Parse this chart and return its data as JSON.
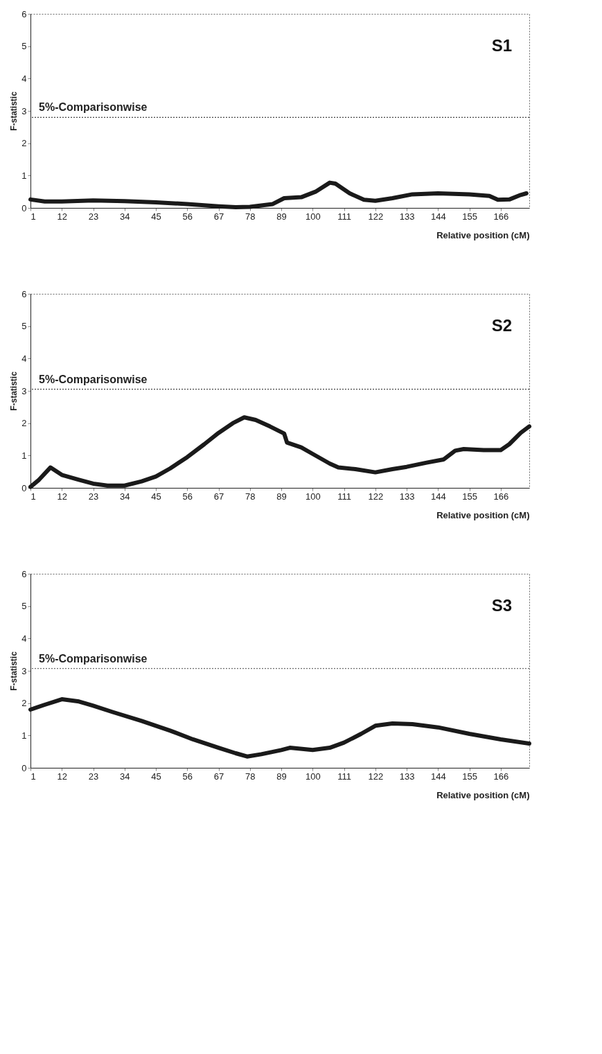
{
  "chart_data": [
    {
      "type": "line",
      "xlabel": "Relative position (cM)",
      "ylabel": "F-statistic",
      "annotations": [
        "S1"
      ],
      "xlim": [
        1,
        176
      ],
      "xticks": [
        1,
        12,
        23,
        34,
        45,
        56,
        67,
        78,
        89,
        100,
        111,
        122,
        133,
        144,
        155,
        166
      ],
      "ylim": [
        0,
        6
      ],
      "yticks": [
        0,
        1,
        2,
        3,
        4,
        5,
        6
      ],
      "grid": false,
      "marker": "none",
      "line_style": "solid",
      "ref_lines": [
        {
          "axis": "y",
          "value": 2.8,
          "label": "5%-Comparisonwise",
          "color": "#444444",
          "line_style": "dotted"
        }
      ],
      "series": [
        {
          "color": "#1a1a1a",
          "x": [
            1,
            6,
            12,
            23,
            34,
            45,
            56,
            67,
            73,
            78,
            86,
            90,
            96,
            101,
            106,
            108,
            113,
            118,
            122,
            128,
            135,
            144,
            155,
            162,
            165,
            169,
            173,
            175
          ],
          "values": [
            0.26,
            0.2,
            0.2,
            0.23,
            0.21,
            0.17,
            0.12,
            0.05,
            0.02,
            0.03,
            0.12,
            0.3,
            0.33,
            0.5,
            0.78,
            0.75,
            0.45,
            0.25,
            0.22,
            0.3,
            0.42,
            0.45,
            0.42,
            0.37,
            0.25,
            0.26,
            0.4,
            0.45
          ]
        }
      ]
    },
    {
      "type": "line",
      "xlabel": "Relative position (cM)",
      "ylabel": "F-statistic",
      "annotations": [
        "S2"
      ],
      "xlim": [
        1,
        176
      ],
      "xticks": [
        1,
        12,
        23,
        34,
        45,
        56,
        67,
        78,
        89,
        100,
        111,
        122,
        133,
        144,
        155,
        166
      ],
      "ylim": [
        0,
        6
      ],
      "yticks": [
        0,
        1,
        2,
        3,
        4,
        5,
        6
      ],
      "grid": false,
      "marker": "none",
      "line_style": "solid",
      "ref_lines": [
        {
          "axis": "y",
          "value": 3.05,
          "label": "5%-Comparisonwise",
          "color": "#444444",
          "line_style": "dotted"
        }
      ],
      "series": [
        {
          "color": "#1a1a1a",
          "x": [
            1,
            4,
            8,
            12,
            18,
            23,
            28,
            34,
            40,
            45,
            50,
            56,
            62,
            67,
            72,
            76,
            80,
            85,
            90,
            91,
            96,
            100,
            106,
            109,
            115,
            122,
            128,
            133,
            140,
            146,
            150,
            153,
            160,
            166,
            169,
            173,
            176
          ],
          "values": [
            0.03,
            0.25,
            0.63,
            0.4,
            0.25,
            0.13,
            0.07,
            0.07,
            0.2,
            0.35,
            0.6,
            0.95,
            1.35,
            1.7,
            2.0,
            2.18,
            2.1,
            1.9,
            1.68,
            1.4,
            1.25,
            1.05,
            0.75,
            0.63,
            0.58,
            0.48,
            0.58,
            0.65,
            0.78,
            0.88,
            1.15,
            1.2,
            1.17,
            1.17,
            1.35,
            1.7,
            1.9
          ]
        }
      ]
    },
    {
      "type": "line",
      "xlabel": "Relative position (cM)",
      "ylabel": "F-statistic",
      "annotations": [
        "S3"
      ],
      "xlim": [
        1,
        176
      ],
      "xticks": [
        1,
        12,
        23,
        34,
        45,
        56,
        67,
        78,
        89,
        100,
        111,
        122,
        133,
        144,
        155,
        166
      ],
      "ylim": [
        0,
        6
      ],
      "yticks": [
        0,
        1,
        2,
        3,
        4,
        5,
        6
      ],
      "grid": false,
      "marker": "none",
      "line_style": "solid",
      "ref_lines": [
        {
          "axis": "y",
          "value": 3.07,
          "label": "5%-Comparisonwise",
          "color": "#444444",
          "line_style": "dotted"
        }
      ],
      "series": [
        {
          "color": "#1a1a1a",
          "x": [
            1,
            6,
            12,
            18,
            23,
            30,
            40,
            50,
            58,
            67,
            73,
            77,
            82,
            89,
            92,
            100,
            106,
            111,
            117,
            122,
            128,
            135,
            144,
            155,
            166,
            176
          ],
          "values": [
            1.8,
            1.95,
            2.12,
            2.05,
            1.92,
            1.72,
            1.45,
            1.15,
            0.88,
            0.62,
            0.45,
            0.35,
            0.42,
            0.55,
            0.62,
            0.55,
            0.62,
            0.78,
            1.05,
            1.3,
            1.37,
            1.35,
            1.25,
            1.05,
            0.88,
            0.75
          ]
        }
      ]
    }
  ]
}
